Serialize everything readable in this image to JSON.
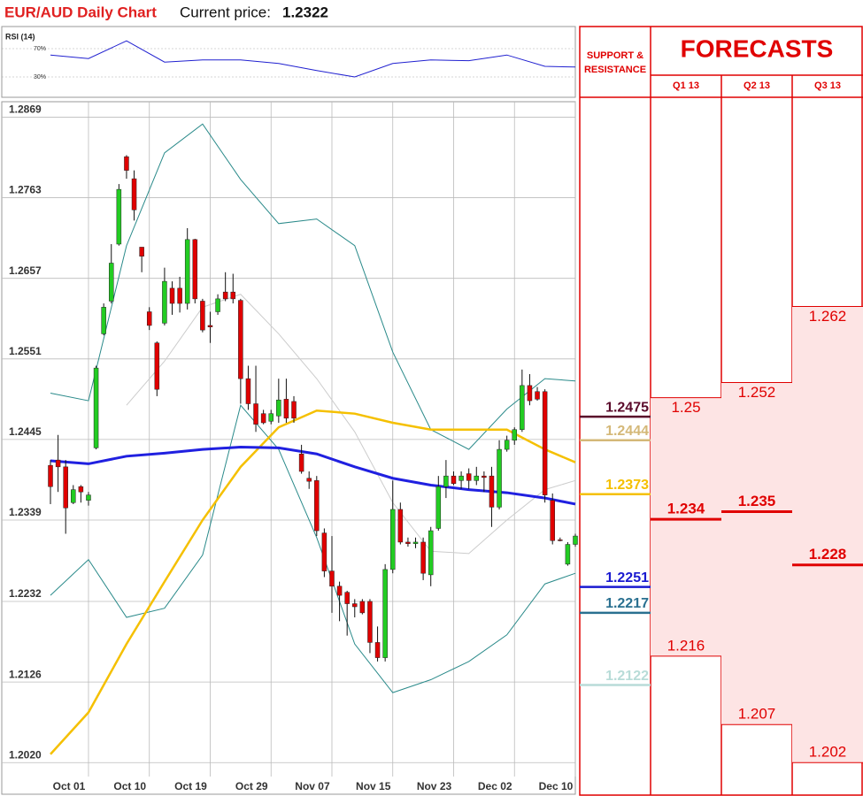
{
  "header": {
    "title": "EUR/AUD Daily Chart",
    "price_label": "Current price:",
    "price": 1.2322
  },
  "chart_data": [
    {
      "type": "candlestick",
      "open": [
        1.2411,
        1.2418,
        1.2409,
        1.2362,
        1.2383,
        1.2365,
        1.2434,
        1.2584,
        1.2627,
        1.2702,
        1.2817,
        1.2788,
        1.2698,
        1.2613,
        1.2572,
        1.2598,
        1.2644,
        1.2644,
        1.2624,
        1.2708,
        1.2627,
        1.2595,
        1.2613,
        1.2639,
        1.2639,
        1.2628,
        1.2525,
        1.2492,
        1.2479,
        1.2469,
        1.2476,
        1.2498,
        1.2495,
        1.2426,
        1.2394,
        1.2391,
        1.2322,
        1.2272,
        1.2252,
        1.2244,
        1.2229,
        1.2232,
        1.2232,
        1.2178,
        1.2158,
        1.2274,
        1.2353,
        1.231,
        1.2308,
        1.231,
        1.2267,
        1.2328,
        1.2383,
        1.2397,
        1.2391,
        1.24,
        1.2391,
        1.2397,
        1.2397,
        1.2356,
        1.2432,
        1.2444,
        1.2458,
        1.2516,
        1.2508,
        1.2508,
        1.2365,
        1.2313,
        1.2281,
        1.2307
      ],
      "high": [
        1.2418,
        1.2451,
        1.2418,
        1.2385,
        1.2385,
        1.2376,
        1.2542,
        1.2624,
        1.2702,
        1.2781,
        1.2819,
        1.2799,
        1.2698,
        1.2619,
        1.2574,
        1.2671,
        1.2653,
        1.2659,
        1.2723,
        1.2709,
        1.263,
        1.2613,
        1.2636,
        1.2665,
        1.2663,
        1.263,
        1.2542,
        1.2542,
        1.2484,
        1.2484,
        1.2525,
        1.2525,
        1.2502,
        1.2438,
        1.2403,
        1.2397,
        1.2328,
        1.2318,
        1.2258,
        1.2246,
        1.2235,
        1.2235,
        1.2235,
        1.2199,
        1.2281,
        1.2391,
        1.2362,
        1.2316,
        1.2316,
        1.2316,
        1.233,
        1.2397,
        1.2418,
        1.2403,
        1.2403,
        1.2407,
        1.2409,
        1.2403,
        1.2409,
        1.2444,
        1.245,
        1.2461,
        1.2537,
        1.2531,
        1.2514,
        1.2511,
        1.2374,
        1.2316,
        1.231,
        1.2321
      ],
      "low": [
        1.236,
        1.2376,
        1.2321,
        1.236,
        1.2362,
        1.2358,
        1.2432,
        1.2582,
        1.2624,
        1.27,
        1.2788,
        1.2733,
        1.2665,
        1.2589,
        1.2502,
        1.2595,
        1.2609,
        1.2612,
        1.2616,
        1.2624,
        1.2586,
        1.2572,
        1.2609,
        1.2627,
        1.2624,
        1.2492,
        1.2484,
        1.2455,
        1.2465,
        1.2465,
        1.2467,
        1.2467,
        1.2467,
        1.24,
        1.238,
        1.2318,
        1.2264,
        1.2217,
        1.2206,
        1.2187,
        1.2211,
        1.2215,
        1.2164,
        1.2153,
        1.2153,
        1.2269,
        1.2307,
        1.2304,
        1.2302,
        1.226,
        1.2252,
        1.2325,
        1.2368,
        1.2385,
        1.238,
        1.238,
        1.2385,
        1.2376,
        1.233,
        1.2353,
        1.2429,
        1.2438,
        1.2455,
        1.249,
        1.2496,
        1.2362,
        1.2307,
        1.2311,
        1.2279,
        1.2304
      ],
      "close": [
        1.2383,
        1.2409,
        1.2355,
        1.2379,
        1.2376,
        1.2372,
        1.2539,
        1.2619,
        1.2677,
        1.2774,
        1.2799,
        1.2747,
        1.2686,
        1.2595,
        1.2511,
        1.2653,
        1.2624,
        1.2624,
        1.2708,
        1.263,
        1.2589,
        1.2593,
        1.263,
        1.263,
        1.263,
        1.2525,
        1.2492,
        1.2465,
        1.2467,
        1.2479,
        1.2497,
        1.2473,
        1.2473,
        1.2403,
        1.239,
        1.2325,
        1.2272,
        1.2252,
        1.224,
        1.2229,
        1.2225,
        1.2217,
        1.2178,
        1.2158,
        1.2274,
        1.2353,
        1.231,
        1.2308,
        1.231,
        1.2269,
        1.2325,
        1.2383,
        1.2397,
        1.2387,
        1.2397,
        1.2391,
        1.2397,
        1.2395,
        1.2356,
        1.2432,
        1.2444,
        1.2458,
        1.2516,
        1.2496,
        1.2498,
        1.2372,
        1.2312,
        1.2312,
        1.2307,
        1.2318
      ],
      "up_color": "#22cc22",
      "down_color": "#e00000",
      "series": [
        {
          "color": "#cccccc",
          "width": 1,
          "x": [
            0,
            5,
            10,
            15,
            20,
            25,
            30,
            35,
            40,
            45,
            50,
            55,
            60,
            65,
            69
          ],
          "values": [
            null,
            null,
            1.249,
            1.2548,
            1.2619,
            1.2636,
            1.2584,
            1.2525,
            1.2455,
            1.2362,
            1.2298,
            1.2295,
            1.2339,
            1.2379,
            1.2391
          ]
        },
        {
          "color": "#2a8a8a",
          "width": 1,
          "x": [
            0,
            5,
            10,
            15,
            20,
            25,
            30,
            35,
            40,
            45,
            50,
            55,
            60,
            65,
            69
          ],
          "values": [
            1.2506,
            1.2496,
            1.27,
            1.2822,
            1.286,
            1.2787,
            1.2729,
            1.2735,
            1.27,
            1.256,
            1.2458,
            1.2432,
            1.2485,
            1.2525,
            1.2522
          ]
        },
        {
          "color": "#2a8a8a",
          "width": 1,
          "x": [
            0,
            5,
            10,
            15,
            20,
            25,
            30,
            35,
            40,
            45,
            50,
            55,
            60,
            65,
            69
          ],
          "values": [
            1.224,
            1.2287,
            1.2211,
            1.2223,
            1.2293,
            1.249,
            1.2432,
            1.2316,
            1.2176,
            1.2112,
            1.2129,
            1.2153,
            1.2188,
            1.2255,
            1.2269
          ]
        },
        {
          "color": "#f5c000",
          "width": 2.5,
          "x": [
            0,
            5,
            10,
            15,
            20,
            25,
            30,
            35,
            40,
            45,
            50,
            55,
            60,
            65,
            69
          ],
          "values": [
            1.2031,
            1.2086,
            1.2176,
            1.2258,
            1.2339,
            1.2409,
            1.2461,
            1.2483,
            1.2479,
            1.2467,
            1.2458,
            1.2458,
            1.2458,
            1.2432,
            1.2415
          ]
        },
        {
          "color": "#2020e0",
          "width": 3,
          "x": [
            0,
            5,
            10,
            15,
            20,
            25,
            30,
            35,
            40,
            45,
            50,
            55,
            60,
            65,
            69
          ],
          "values": [
            1.2417,
            1.2413,
            1.2423,
            1.2427,
            1.2432,
            1.2435,
            1.2434,
            1.2426,
            1.2409,
            1.2394,
            1.2385,
            1.2379,
            1.2375,
            1.2368,
            1.236
          ]
        }
      ],
      "xlim": [
        -6.4,
        69
      ],
      "xticks": [
        {
          "value": 5,
          "label": "Oct 01"
        },
        {
          "value": 13,
          "label": "Oct 10"
        },
        {
          "value": 21,
          "label": "Oct 19"
        },
        {
          "value": 29,
          "label": "Oct 29"
        },
        {
          "value": 37,
          "label": "Nov 07"
        },
        {
          "value": 45,
          "label": "Nov 15"
        },
        {
          "value": 53,
          "label": "Nov 23"
        },
        {
          "value": 61,
          "label": "Dec 02"
        },
        {
          "value": 69,
          "label": "Dec 10"
        }
      ],
      "ylim": [
        1.199,
        1.288
      ],
      "yticks": [
        1.2869,
        1.2763,
        1.2657,
        1.2551,
        1.2445,
        1.2339,
        1.2232,
        1.2126,
        {
          "value": 1.202,
          "label": "1.2020"
        }
      ],
      "grid": true
    },
    {
      "type": "line",
      "title": "RSI (14)",
      "series": [
        {
          "color": "#2020d0",
          "width": 1,
          "x": [
            0,
            5,
            10,
            15,
            20,
            25,
            30,
            35,
            40,
            45,
            50,
            55,
            60,
            65,
            69
          ],
          "values": [
            61,
            56,
            81,
            51,
            54,
            54,
            49,
            39,
            30,
            49,
            54,
            53,
            61,
            45,
            44
          ]
        }
      ],
      "xlim": [
        -6.4,
        69
      ],
      "ylim": [
        0,
        100
      ],
      "yticks": [
        {
          "value": 70,
          "label": "70%"
        },
        {
          "value": 30,
          "label": "30%"
        }
      ],
      "grid": true
    }
  ],
  "support_resistance": {
    "title": "SUPPORT & RESISTANCE",
    "levels": [
      {
        "value": 1.2475,
        "color": "#5a0a2a"
      },
      {
        "value": 1.2444,
        "color": "#d4b878"
      },
      {
        "value": 1.2373,
        "color": "#f5c000"
      },
      {
        "value": 1.2251,
        "color": "#1a1ad0"
      },
      {
        "value": 1.2217,
        "color": "#2a7090"
      },
      {
        "value": 1.2122,
        "color": "#b8dcd8"
      }
    ]
  },
  "forecasts": {
    "title": "FORECASTS",
    "quarters": [
      {
        "name": "Q1 13",
        "high": 1.25,
        "mid": 1.234,
        "low": 1.216
      },
      {
        "name": "Q2 13",
        "high": 1.252,
        "mid": 1.235,
        "low": 1.207
      },
      {
        "name": "Q3 13",
        "high": 1.262,
        "mid": 1.228,
        "low": 1.202
      }
    ]
  }
}
